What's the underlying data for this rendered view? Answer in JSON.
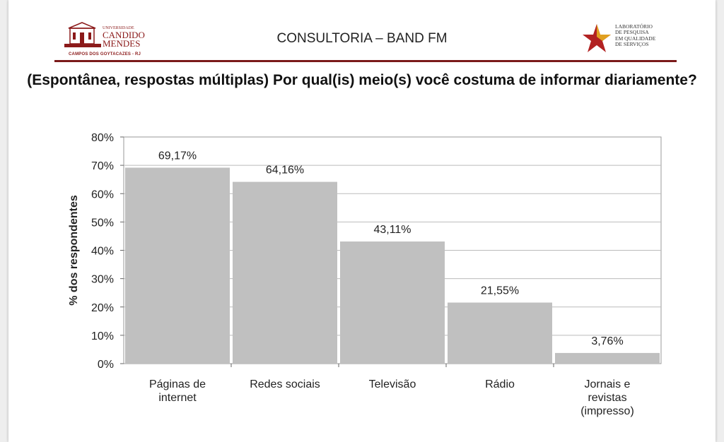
{
  "header": {
    "title": "CONSULTORIA – BAND FM",
    "left_logo": {
      "small_line": "UNIVERSIDADE",
      "line1": "CANDIDO",
      "line2": "MENDES",
      "campus": "CAMPOS DOS GOYTACAZES - RJ"
    },
    "right_logo": {
      "text": "LABORATÓRIO\nDE PESQUISA\nEM QUALIDADE\nDE SERVIÇOS"
    }
  },
  "question": "(Espontânea, respostas múltiplas) Por qual(is) meio(s) você costuma de informar diariamente?",
  "chart_data": {
    "type": "bar",
    "categories": [
      [
        "Páginas de",
        "internet"
      ],
      [
        "Redes sociais"
      ],
      [
        "Televisão"
      ],
      [
        "Rádio"
      ],
      [
        "Jornais e",
        "revistas",
        "(impresso)"
      ]
    ],
    "values": [
      69.17,
      64.16,
      43.11,
      21.55,
      3.76
    ],
    "data_labels": [
      "69,17%",
      "64,16%",
      "43,11%",
      "21,55%",
      "3,76%"
    ],
    "ylabel": "% dos respondentes",
    "ylim": [
      0,
      80
    ],
    "yticks": [
      0,
      10,
      20,
      30,
      40,
      50,
      60,
      70,
      80
    ],
    "ytick_labels": [
      "0%",
      "10%",
      "20%",
      "30%",
      "40%",
      "50%",
      "60%",
      "70%",
      "80%"
    ],
    "grid": true,
    "legend": false,
    "bar_color": "#c0c0c0"
  },
  "colors": {
    "accent": "#7a1a1a",
    "star_red": "#b22222",
    "star_gold": "#e0a020"
  }
}
